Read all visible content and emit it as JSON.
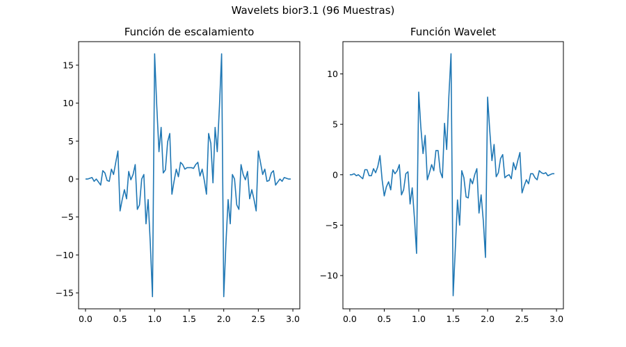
{
  "figure": {
    "title": "Wavelets bior3.1 (96 Muestras)"
  },
  "colors": {
    "line": "#1f77b4",
    "axis": "#000000",
    "background": "#ffffff"
  },
  "chart_data": [
    {
      "type": "line",
      "title": "Función de escalamiento",
      "xlabel": "",
      "ylabel": "",
      "xlim": [
        -0.1,
        3.1
      ],
      "ylim": [
        -17.1,
        18.1
      ],
      "xticks": [
        0.0,
        0.5,
        1.0,
        1.5,
        2.0,
        2.5,
        3.0
      ],
      "xtick_labels": [
        "0.0",
        "0.5",
        "1.0",
        "1.5",
        "2.0",
        "2.5",
        "3.0"
      ],
      "yticks": [
        -15,
        -10,
        -5,
        0,
        5,
        10,
        15
      ],
      "ytick_labels": [
        "−15",
        "−10",
        "−5",
        "0",
        "5",
        "10",
        "15"
      ],
      "grid": false,
      "legend": "none",
      "series": [
        {
          "x": [
            0.0,
            0.031,
            0.063,
            0.094,
            0.125,
            0.156,
            0.188,
            0.219,
            0.25,
            0.281,
            0.313,
            0.344,
            0.375,
            0.406,
            0.438,
            0.469,
            0.5,
            0.531,
            0.563,
            0.594,
            0.625,
            0.656,
            0.688,
            0.719,
            0.75,
            0.781,
            0.813,
            0.844,
            0.875,
            0.906,
            0.938,
            0.969,
            1.0,
            1.031,
            1.063,
            1.094,
            1.125,
            1.156,
            1.188,
            1.219,
            1.25,
            1.281,
            1.313,
            1.344,
            1.375,
            1.406,
            1.438,
            1.469,
            1.5,
            1.531,
            1.563,
            1.594,
            1.625,
            1.656,
            1.688,
            1.719,
            1.75,
            1.781,
            1.813,
            1.844,
            1.875,
            1.906,
            1.938,
            1.969,
            2.0,
            2.031,
            2.063,
            2.094,
            2.125,
            2.156,
            2.188,
            2.219,
            2.25,
            2.281,
            2.313,
            2.344,
            2.375,
            2.406,
            2.438,
            2.469,
            2.5,
            2.531,
            2.563,
            2.594,
            2.625,
            2.656,
            2.688,
            2.719,
            2.75,
            2.781,
            2.813,
            2.844,
            2.875,
            2.906,
            2.938,
            2.969
          ],
          "y": [
            0.0,
            0.0,
            0.1,
            0.2,
            -0.3,
            0.0,
            -0.4,
            -0.8,
            1.1,
            0.8,
            -0.2,
            -0.3,
            1.3,
            0.6,
            2.2,
            3.7,
            -4.2,
            -2.7,
            -1.4,
            -2.6,
            1.0,
            -0.1,
            0.6,
            1.9,
            -4.0,
            -3.4,
            0.0,
            0.6,
            -5.9,
            -2.7,
            -8.6,
            -15.5,
            16.5,
            9.6,
            3.6,
            6.8,
            0.8,
            1.2,
            4.9,
            6.0,
            -2.0,
            -0.3,
            1.3,
            0.3,
            2.2,
            1.9,
            1.3,
            1.5,
            1.5,
            1.5,
            1.4,
            1.9,
            2.2,
            0.4,
            1.3,
            -0.2,
            -2.0,
            6.0,
            4.7,
            -0.5,
            6.8,
            3.6,
            9.6,
            16.5,
            -15.5,
            -8.6,
            -2.7,
            -5.9,
            0.6,
            0.0,
            -3.4,
            -4.0,
            1.9,
            0.6,
            -0.1,
            1.0,
            -2.6,
            -1.4,
            -2.7,
            -4.2,
            3.7,
            2.2,
            0.6,
            1.3,
            -0.3,
            -0.2,
            0.8,
            1.1,
            -0.8,
            -0.4,
            0.0,
            -0.3,
            0.2,
            0.1,
            0.0,
            0.0
          ]
        }
      ]
    },
    {
      "type": "line",
      "title": "Función Wavelet",
      "xlabel": "",
      "ylabel": "",
      "xlim": [
        -0.1,
        3.1
      ],
      "ylim": [
        -13.3,
        13.2
      ],
      "xticks": [
        0.0,
        0.5,
        1.0,
        1.5,
        2.0,
        2.5,
        3.0
      ],
      "xtick_labels": [
        "0.0",
        "0.5",
        "1.0",
        "1.5",
        "2.0",
        "2.5",
        "3.0"
      ],
      "yticks": [
        -10,
        -5,
        0,
        5,
        10
      ],
      "ytick_labels": [
        "−10",
        "−5",
        "0",
        "5",
        "10"
      ],
      "grid": false,
      "legend": "none",
      "series": [
        {
          "x": [
            0.0,
            0.031,
            0.063,
            0.094,
            0.125,
            0.156,
            0.188,
            0.219,
            0.25,
            0.281,
            0.313,
            0.344,
            0.375,
            0.406,
            0.438,
            0.469,
            0.5,
            0.531,
            0.563,
            0.594,
            0.625,
            0.656,
            0.688,
            0.719,
            0.75,
            0.781,
            0.813,
            0.844,
            0.875,
            0.906,
            0.938,
            0.969,
            1.0,
            1.031,
            1.063,
            1.094,
            1.125,
            1.156,
            1.188,
            1.219,
            1.25,
            1.281,
            1.313,
            1.344,
            1.375,
            1.406,
            1.438,
            1.469,
            1.5,
            1.531,
            1.563,
            1.594,
            1.625,
            1.656,
            1.688,
            1.719,
            1.75,
            1.781,
            1.813,
            1.844,
            1.875,
            1.906,
            1.938,
            1.969,
            2.0,
            2.031,
            2.063,
            2.094,
            2.125,
            2.156,
            2.188,
            2.219,
            2.25,
            2.281,
            2.313,
            2.344,
            2.375,
            2.406,
            2.438,
            2.469,
            2.5,
            2.531,
            2.563,
            2.594,
            2.625,
            2.656,
            2.688,
            2.719,
            2.75,
            2.781,
            2.813,
            2.844,
            2.875,
            2.906,
            2.938,
            2.969
          ],
          "y": [
            0.0,
            0.0,
            0.1,
            -0.1,
            0.0,
            -0.2,
            -0.4,
            0.5,
            0.5,
            -0.1,
            -0.1,
            0.6,
            0.2,
            0.8,
            1.9,
            -0.5,
            -2.1,
            -1.2,
            -0.7,
            -1.5,
            0.5,
            0.1,
            0.4,
            1.0,
            -2.0,
            -1.5,
            0.1,
            0.3,
            -2.9,
            -1.3,
            -4.3,
            -7.8,
            8.2,
            4.7,
            2.1,
            3.9,
            -0.5,
            0.2,
            1.0,
            0.4,
            2.4,
            2.4,
            0.3,
            -0.3,
            5.1,
            2.5,
            7.8,
            12.0,
            -12.0,
            -7.4,
            -2.5,
            -5.0,
            0.4,
            -0.3,
            -2.2,
            -2.3,
            -0.4,
            -0.9,
            0.0,
            0.6,
            -3.8,
            -2.0,
            -4.6,
            -8.2,
            7.7,
            4.4,
            1.4,
            3.0,
            -0.2,
            0.2,
            1.6,
            2.0,
            -0.3,
            -0.1,
            0.0,
            -0.4,
            1.2,
            0.5,
            1.4,
            2.2,
            -1.8,
            -1.1,
            -0.5,
            -0.9,
            0.1,
            0.1,
            -0.3,
            -0.5,
            0.4,
            0.2,
            0.1,
            0.2,
            -0.1,
            0.0,
            0.1,
            0.1
          ]
        }
      ]
    }
  ]
}
